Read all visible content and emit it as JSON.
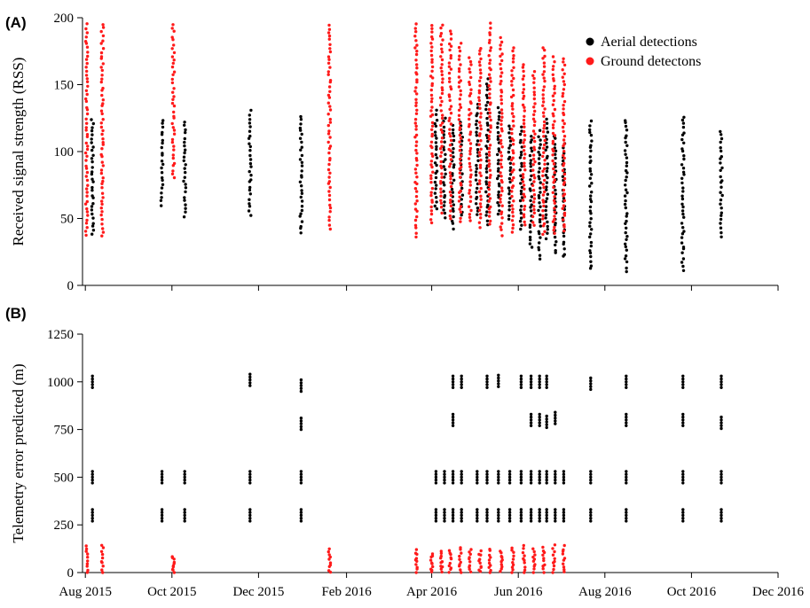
{
  "figure": {
    "panel_a_label": "(A)",
    "panel_b_label": "(B)"
  },
  "chart_data": [
    {
      "panel": "(A)",
      "type": "scatter",
      "xlabel": "",
      "ylabel": "Received signal strength (RSS)",
      "xlim": [
        "2015-07-30",
        "2016-12-01"
      ],
      "ylim": [
        0,
        200
      ],
      "yticks": [
        0,
        50,
        100,
        150,
        200
      ],
      "xticks": [
        "2015-08-01",
        "2015-10-01",
        "2015-12-01",
        "2016-02-01",
        "2016-04-01",
        "2016-06-01",
        "2016-08-01",
        "2016-10-01",
        "2016-12-01"
      ],
      "grid": false,
      "legend_position": "top-right",
      "legend": [
        {
          "label": "Aerial detections",
          "color": "#000000"
        },
        {
          "label": "Ground detectons",
          "color": "#ff1a1a"
        }
      ],
      "series": [
        {
          "name": "Aerial detections",
          "color": "#000000",
          "groups": [
            {
              "date": "2015-08-06",
              "min": 38,
              "max": 124
            },
            {
              "date": "2015-09-24",
              "min": 60,
              "max": 124
            },
            {
              "date": "2015-10-10",
              "min": 52,
              "max": 122
            },
            {
              "date": "2015-11-25",
              "min": 53,
              "max": 130
            },
            {
              "date": "2015-12-31",
              "min": 39,
              "max": 127
            },
            {
              "date": "2016-04-04",
              "min": 57,
              "max": 130
            },
            {
              "date": "2016-04-10",
              "min": 50,
              "max": 125
            },
            {
              "date": "2016-04-16",
              "min": 43,
              "max": 120
            },
            {
              "date": "2016-04-22",
              "min": 52,
              "max": 122
            },
            {
              "date": "2016-05-03",
              "min": 52,
              "max": 135
            },
            {
              "date": "2016-05-10",
              "min": 46,
              "max": 154
            },
            {
              "date": "2016-05-18",
              "min": 53,
              "max": 132
            },
            {
              "date": "2016-05-26",
              "min": 50,
              "max": 120
            },
            {
              "date": "2016-06-03",
              "min": 42,
              "max": 118
            },
            {
              "date": "2016-06-10",
              "min": 28,
              "max": 112
            },
            {
              "date": "2016-06-16",
              "min": 20,
              "max": 115
            },
            {
              "date": "2016-06-21",
              "min": 35,
              "max": 124
            },
            {
              "date": "2016-06-27",
              "min": 24,
              "max": 112
            },
            {
              "date": "2016-07-03",
              "min": 21,
              "max": 105
            },
            {
              "date": "2016-07-22",
              "min": 12,
              "max": 123
            },
            {
              "date": "2016-08-16",
              "min": 11,
              "max": 124
            },
            {
              "date": "2016-09-25",
              "min": 12,
              "max": 126
            },
            {
              "date": "2016-10-22",
              "min": 37,
              "max": 115
            }
          ]
        },
        {
          "name": "Ground detectons",
          "color": "#ff1a1a",
          "groups": [
            {
              "date": "2015-08-02",
              "min": 37,
              "max": 195
            },
            {
              "date": "2015-08-13",
              "min": 37,
              "max": 195
            },
            {
              "date": "2015-10-02",
              "min": 80,
              "max": 195
            },
            {
              "date": "2016-01-20",
              "min": 43,
              "max": 195
            },
            {
              "date": "2016-03-21",
              "min": 37,
              "max": 195
            },
            {
              "date": "2016-04-01",
              "min": 47,
              "max": 195
            },
            {
              "date": "2016-04-08",
              "min": 55,
              "max": 195
            },
            {
              "date": "2016-04-14",
              "min": 50,
              "max": 190
            },
            {
              "date": "2016-04-21",
              "min": 48,
              "max": 180
            },
            {
              "date": "2016-04-28",
              "min": 48,
              "max": 170
            },
            {
              "date": "2016-05-05",
              "min": 44,
              "max": 178
            },
            {
              "date": "2016-05-12",
              "min": 45,
              "max": 195
            },
            {
              "date": "2016-05-20",
              "min": 38,
              "max": 185
            },
            {
              "date": "2016-05-28",
              "min": 40,
              "max": 178
            },
            {
              "date": "2016-06-05",
              "min": 45,
              "max": 165
            },
            {
              "date": "2016-06-12",
              "min": 45,
              "max": 160
            },
            {
              "date": "2016-06-19",
              "min": 38,
              "max": 178
            },
            {
              "date": "2016-06-26",
              "min": 38,
              "max": 170
            },
            {
              "date": "2016-07-03",
              "min": 40,
              "max": 170
            }
          ]
        }
      ]
    },
    {
      "panel": "(B)",
      "type": "scatter",
      "xlabel": "",
      "ylabel": "Telemetry error predicted (m)",
      "xlim": [
        "2015-07-30",
        "2016-12-01"
      ],
      "ylim": [
        0,
        1250
      ],
      "yticks": [
        0,
        250,
        500,
        750,
        1000,
        1250
      ],
      "xticks": [
        "2015-08-01",
        "2015-10-01",
        "2015-12-01",
        "2016-02-01",
        "2016-04-01",
        "2016-06-01",
        "2016-08-01",
        "2016-10-01",
        "2016-12-01"
      ],
      "xtick_labels": [
        "Aug 2015",
        "Oct 2015",
        "Dec 2015",
        "Feb 2016",
        "Apr 2016",
        "Jun 2016",
        "Aug 2016",
        "Oct 2016",
        "Dec 2016"
      ],
      "grid": false,
      "series": [
        {
          "name": "Aerial detections",
          "color": "#000000",
          "error_levels_by_date": [
            {
              "date": "2015-08-06",
              "values": [
                300,
                500,
                1000
              ]
            },
            {
              "date": "2015-09-24",
              "values": [
                300,
                500
              ]
            },
            {
              "date": "2015-10-10",
              "values": [
                300,
                500
              ]
            },
            {
              "date": "2015-11-25",
              "values": [
                300,
                500,
                1010
              ]
            },
            {
              "date": "2015-12-31",
              "values": [
                300,
                500,
                780,
                980
              ]
            },
            {
              "date": "2016-04-04",
              "values": [
                300,
                500
              ]
            },
            {
              "date": "2016-04-10",
              "values": [
                300,
                500
              ]
            },
            {
              "date": "2016-04-16",
              "values": [
                300,
                500,
                800,
                1000
              ]
            },
            {
              "date": "2016-04-22",
              "values": [
                300,
                500,
                1000
              ]
            },
            {
              "date": "2016-05-03",
              "values": [
                300,
                500
              ]
            },
            {
              "date": "2016-05-10",
              "values": [
                300,
                500,
                1000
              ]
            },
            {
              "date": "2016-05-18",
              "values": [
                300,
                500,
                1005
              ]
            },
            {
              "date": "2016-05-26",
              "values": [
                300,
                500
              ]
            },
            {
              "date": "2016-06-03",
              "values": [
                300,
                500,
                1000
              ]
            },
            {
              "date": "2016-06-10",
              "values": [
                300,
                500,
                800,
                1000
              ]
            },
            {
              "date": "2016-06-16",
              "values": [
                300,
                500,
                800,
                1000
              ]
            },
            {
              "date": "2016-06-21",
              "values": [
                300,
                500,
                790,
                1000
              ]
            },
            {
              "date": "2016-06-27",
              "values": [
                300,
                500,
                810
              ]
            },
            {
              "date": "2016-07-03",
              "values": [
                300,
                500
              ]
            },
            {
              "date": "2016-07-22",
              "values": [
                300,
                500,
                990
              ]
            },
            {
              "date": "2016-08-16",
              "values": [
                300,
                500,
                800,
                1000
              ]
            },
            {
              "date": "2016-09-25",
              "values": [
                300,
                500,
                800,
                1000
              ]
            },
            {
              "date": "2016-10-22",
              "values": [
                300,
                500,
                785,
                1000
              ]
            }
          ]
        },
        {
          "name": "Ground detectons",
          "color": "#ff1a1a",
          "groups": [
            {
              "date": "2015-08-02",
              "min": 0,
              "max": 140
            },
            {
              "date": "2015-08-13",
              "min": 0,
              "max": 140
            },
            {
              "date": "2015-10-02",
              "min": 0,
              "max": 85
            },
            {
              "date": "2016-01-20",
              "min": 0,
              "max": 125
            },
            {
              "date": "2016-03-21",
              "min": 0,
              "max": 120
            },
            {
              "date": "2016-04-01",
              "min": 0,
              "max": 100
            },
            {
              "date": "2016-04-08",
              "min": 0,
              "max": 110
            },
            {
              "date": "2016-04-14",
              "min": 0,
              "max": 120
            },
            {
              "date": "2016-04-21",
              "min": 0,
              "max": 130
            },
            {
              "date": "2016-04-28",
              "min": 0,
              "max": 120
            },
            {
              "date": "2016-05-05",
              "min": 0,
              "max": 110
            },
            {
              "date": "2016-05-12",
              "min": 0,
              "max": 125
            },
            {
              "date": "2016-05-20",
              "min": 0,
              "max": 115
            },
            {
              "date": "2016-05-28",
              "min": 0,
              "max": 130
            },
            {
              "date": "2016-06-05",
              "min": 0,
              "max": 140
            },
            {
              "date": "2016-06-12",
              "min": 0,
              "max": 125
            },
            {
              "date": "2016-06-19",
              "min": 0,
              "max": 130
            },
            {
              "date": "2016-06-26",
              "min": 0,
              "max": 140
            },
            {
              "date": "2016-07-03",
              "min": 0,
              "max": 140
            }
          ]
        }
      ]
    }
  ]
}
